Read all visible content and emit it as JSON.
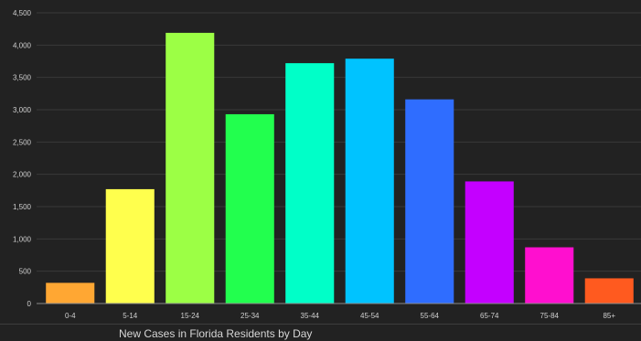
{
  "footer": {
    "title": "New Cases in Florida Residents by Day"
  },
  "colors": {
    "background": "#222222",
    "bars": [
      "#ffa733",
      "#ffff4d",
      "#9cff45",
      "#22ff4e",
      "#00ffc8",
      "#00c3ff",
      "#2f6dff",
      "#c400ff",
      "#ff0fcf",
      "#ff5a1f"
    ]
  },
  "chart_data": {
    "type": "bar",
    "categories": [
      "0-4",
      "5-14",
      "15-24",
      "25-34",
      "35-44",
      "45-54",
      "55-64",
      "65-74",
      "75-84",
      "85+"
    ],
    "values": [
      320,
      1770,
      4190,
      2930,
      3720,
      3790,
      3160,
      1890,
      870,
      390
    ],
    "ylim": [
      0,
      4500
    ],
    "yticks": [
      0,
      500,
      1000,
      1500,
      2000,
      2500,
      3000,
      3500,
      4000,
      4500
    ],
    "ytick_labels": [
      "0",
      "500",
      "1,000",
      "1,500",
      "2,000",
      "2,500",
      "3,000",
      "3,500",
      "4,000",
      "4,500"
    ],
    "grid": true,
    "legend": "none"
  }
}
